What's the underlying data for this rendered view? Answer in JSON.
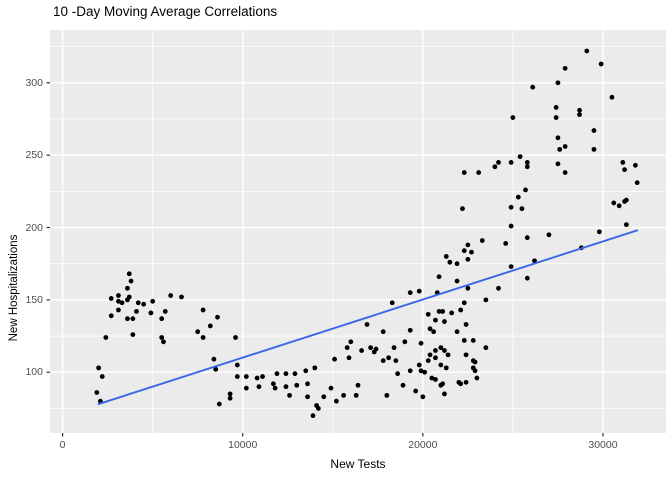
{
  "chart_data": {
    "type": "scatter",
    "title": "10 -Day Moving Average Correlations",
    "xlabel": "New Tests",
    "ylabel": "New Hospitalizations",
    "xlim": [
      -700,
      33500
    ],
    "ylim": [
      58,
      336.5
    ],
    "x_ticks": [
      0,
      10000,
      20000,
      30000
    ],
    "x_tick_labels": [
      "0",
      "10000",
      "20000",
      "30000"
    ],
    "x_minor_ticks": [
      5000,
      15000,
      25000
    ],
    "y_ticks": [
      100,
      150,
      200,
      250,
      300
    ],
    "y_tick_labels": [
      "100",
      "150",
      "200",
      "250",
      "300"
    ],
    "y_minor_ticks": [
      75,
      125,
      175,
      225,
      275,
      325
    ],
    "grid": true,
    "legend": false,
    "panel_bg": "#EBEBEB",
    "grid_color": "#FFFFFF",
    "point_color": "#000000",
    "tick_color": "#333333",
    "tick_label_color": "#4D4D4D",
    "trend_line": {
      "color": "#3A66E8",
      "points": [
        [
          2000,
          78
        ],
        [
          31900,
          198
        ]
      ]
    },
    "points": [
      [
        2000,
        103
      ],
      [
        2200,
        97
      ],
      [
        1900,
        86
      ],
      [
        2100,
        80
      ],
      [
        2400,
        124
      ],
      [
        2700,
        139
      ],
      [
        2700,
        151
      ],
      [
        3100,
        149
      ],
      [
        3100,
        153
      ],
      [
        3300,
        148
      ],
      [
        3600,
        150
      ],
      [
        3700,
        168
      ],
      [
        3800,
        163
      ],
      [
        3600,
        158
      ],
      [
        3700,
        152
      ],
      [
        3100,
        143
      ],
      [
        4100,
        142
      ],
      [
        3600,
        137
      ],
      [
        3900,
        137
      ],
      [
        4200,
        148
      ],
      [
        4500,
        147
      ],
      [
        4900,
        141
      ],
      [
        5000,
        149
      ],
      [
        5500,
        137
      ],
      [
        5700,
        142
      ],
      [
        5500,
        124
      ],
      [
        5600,
        121
      ],
      [
        3900,
        126
      ],
      [
        6000,
        153
      ],
      [
        6600,
        152
      ],
      [
        7500,
        128
      ],
      [
        7800,
        143
      ],
      [
        8600,
        138
      ],
      [
        8200,
        132
      ],
      [
        7800,
        124
      ],
      [
        9600,
        124
      ],
      [
        8400,
        109
      ],
      [
        8500,
        102
      ],
      [
        9700,
        105
      ],
      [
        9700,
        97
      ],
      [
        10200,
        97
      ],
      [
        10200,
        89
      ],
      [
        9300,
        85
      ],
      [
        9300,
        82
      ],
      [
        8700,
        78
      ],
      [
        10800,
        96
      ],
      [
        10900,
        90
      ],
      [
        11100,
        97
      ],
      [
        11700,
        92
      ],
      [
        11800,
        89
      ],
      [
        11900,
        99
      ],
      [
        12400,
        99
      ],
      [
        12400,
        90
      ],
      [
        12600,
        84
      ],
      [
        12900,
        99
      ],
      [
        13000,
        91
      ],
      [
        13500,
        101
      ],
      [
        13600,
        92
      ],
      [
        13600,
        83
      ],
      [
        14000,
        103
      ],
      [
        14100,
        77
      ],
      [
        14200,
        75
      ],
      [
        13900,
        70
      ],
      [
        14500,
        83
      ],
      [
        14900,
        89
      ],
      [
        15100,
        109
      ],
      [
        15200,
        80
      ],
      [
        15600,
        84
      ],
      [
        15800,
        117
      ],
      [
        15900,
        110
      ],
      [
        16000,
        121
      ],
      [
        16300,
        84
      ],
      [
        16400,
        91
      ],
      [
        16600,
        115
      ],
      [
        16900,
        133
      ],
      [
        17100,
        117
      ],
      [
        17400,
        116
      ],
      [
        17300,
        114
      ],
      [
        17800,
        128
      ],
      [
        17800,
        108
      ],
      [
        18100,
        110
      ],
      [
        18300,
        148
      ],
      [
        18400,
        117
      ],
      [
        18500,
        108
      ],
      [
        18600,
        99
      ],
      [
        18000,
        84
      ],
      [
        18900,
        91
      ],
      [
        19000,
        121
      ],
      [
        19300,
        129
      ],
      [
        19300,
        101
      ],
      [
        19300,
        155
      ],
      [
        19600,
        87
      ],
      [
        19800,
        156
      ],
      [
        19800,
        105
      ],
      [
        19900,
        120
      ],
      [
        19900,
        101
      ],
      [
        20000,
        83
      ],
      [
        20100,
        100
      ],
      [
        20300,
        140
      ],
      [
        20300,
        108
      ],
      [
        20400,
        130
      ],
      [
        20400,
        112
      ],
      [
        20500,
        96
      ],
      [
        20600,
        128
      ],
      [
        20700,
        136
      ],
      [
        20700,
        115
      ],
      [
        20700,
        110
      ],
      [
        20700,
        95
      ],
      [
        20800,
        155
      ],
      [
        20900,
        166
      ],
      [
        20900,
        142
      ],
      [
        21000,
        117
      ],
      [
        21000,
        105
      ],
      [
        21000,
        91
      ],
      [
        21100,
        142
      ],
      [
        21100,
        92
      ],
      [
        21200,
        135
      ],
      [
        21200,
        115
      ],
      [
        21200,
        85
      ],
      [
        21300,
        180
      ],
      [
        21300,
        103
      ],
      [
        21400,
        112
      ],
      [
        21500,
        176
      ],
      [
        21600,
        141
      ],
      [
        21900,
        175
      ],
      [
        21900,
        163
      ],
      [
        21900,
        128
      ],
      [
        22000,
        93
      ],
      [
        22100,
        143
      ],
      [
        22100,
        92
      ],
      [
        22200,
        213
      ],
      [
        22300,
        238
      ],
      [
        22300,
        184
      ],
      [
        22300,
        148
      ],
      [
        22300,
        122
      ],
      [
        22400,
        133
      ],
      [
        22400,
        112
      ],
      [
        22400,
        93
      ],
      [
        22500,
        188
      ],
      [
        22500,
        178
      ],
      [
        22500,
        158
      ],
      [
        22700,
        183
      ],
      [
        22800,
        122
      ],
      [
        22800,
        108
      ],
      [
        22800,
        103
      ],
      [
        22900,
        107
      ],
      [
        22900,
        101
      ],
      [
        23000,
        96
      ],
      [
        23100,
        238
      ],
      [
        23300,
        191
      ],
      [
        23500,
        150
      ],
      [
        23500,
        117
      ],
      [
        24000,
        242
      ],
      [
        24200,
        245
      ],
      [
        24200,
        158
      ],
      [
        24600,
        189
      ],
      [
        24900,
        245
      ],
      [
        24900,
        214
      ],
      [
        24900,
        201
      ],
      [
        24900,
        173
      ],
      [
        25000,
        276
      ],
      [
        25300,
        221
      ],
      [
        25400,
        249
      ],
      [
        25500,
        213
      ],
      [
        25700,
        226
      ],
      [
        25800,
        245
      ],
      [
        25800,
        242
      ],
      [
        25800,
        193
      ],
      [
        25800,
        165
      ],
      [
        26100,
        297
      ],
      [
        26200,
        177
      ],
      [
        27000,
        195
      ],
      [
        27400,
        283
      ],
      [
        27400,
        276
      ],
      [
        27500,
        300
      ],
      [
        27500,
        262
      ],
      [
        27500,
        244
      ],
      [
        27600,
        254
      ],
      [
        27900,
        310
      ],
      [
        27900,
        256
      ],
      [
        27900,
        238
      ],
      [
        28700,
        281
      ],
      [
        28700,
        278
      ],
      [
        28800,
        186
      ],
      [
        29100,
        322
      ],
      [
        29500,
        267
      ],
      [
        29500,
        254
      ],
      [
        29800,
        197
      ],
      [
        29900,
        313
      ],
      [
        30500,
        290
      ],
      [
        30600,
        217
      ],
      [
        30900,
        215
      ],
      [
        31100,
        245
      ],
      [
        31200,
        240
      ],
      [
        31200,
        218
      ],
      [
        31300,
        219
      ],
      [
        31300,
        202
      ],
      [
        31800,
        243
      ],
      [
        31900,
        231
      ]
    ]
  }
}
